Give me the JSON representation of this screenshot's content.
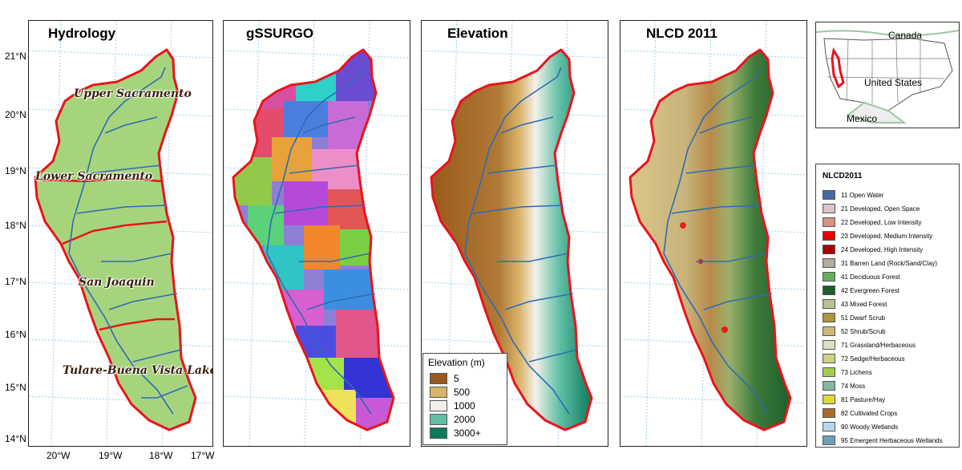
{
  "panels": [
    {
      "title": "Hydrology"
    },
    {
      "title": "gSSURGO"
    },
    {
      "title": "Elevation"
    },
    {
      "title": "NLCD 2011"
    }
  ],
  "axes": {
    "lat_ticks": [
      "21°N",
      "20°N",
      "19°N",
      "18°N",
      "17°N",
      "16°N",
      "15°N",
      "14°N"
    ],
    "lon_ticks": [
      "20°W",
      "19°W",
      "18°W",
      "17°W"
    ]
  },
  "subregions": [
    "Upper Sacramento",
    "Lower Sacramento",
    "San Joaquin",
    "Tulare-Buena Vista Lake"
  ],
  "elevation_legend": {
    "title": "Elevation (m)",
    "items": [
      {
        "label": "5",
        "color": "#9a5a1c"
      },
      {
        "label": "500",
        "color": "#d9b46a"
      },
      {
        "label": "1000",
        "color": "#f2f0ea"
      },
      {
        "label": "2000",
        "color": "#5fbfa5"
      },
      {
        "label": "3000+",
        "color": "#0f7a5c"
      }
    ]
  },
  "nlcd_legend": {
    "title": "NLCD2011",
    "items": [
      {
        "label": "11 Open Water",
        "color": "#466b9f"
      },
      {
        "label": "21 Developed, Open Space",
        "color": "#dec5c5"
      },
      {
        "label": "22 Developed, Low Intensity",
        "color": "#d99282"
      },
      {
        "label": "23 Developed, Medium Intensity",
        "color": "#eb0000"
      },
      {
        "label": "24 Developed, High Intensity",
        "color": "#ab0000"
      },
      {
        "label": "31 Barren Land (Rock/Sand/Clay)",
        "color": "#b3ac9f"
      },
      {
        "label": "41 Deciduous Forest",
        "color": "#68ab5f"
      },
      {
        "label": "42 Evergreen Forest",
        "color": "#1c5f2c"
      },
      {
        "label": "43 Mixed Forest",
        "color": "#b5c58f"
      },
      {
        "label": "51 Dwarf Scrub",
        "color": "#af963c"
      },
      {
        "label": "52 Shrub/Scrub",
        "color": "#ccb879"
      },
      {
        "label": "71 Grassland/Herbaceous",
        "color": "#dfdfc2"
      },
      {
        "label": "72 Sedge/Herbaceous",
        "color": "#d1d182"
      },
      {
        "label": "73 Lichens",
        "color": "#a3cc51"
      },
      {
        "label": "74 Moss",
        "color": "#82ba9e"
      },
      {
        "label": "81 Pasture/Hay",
        "color": "#dcd939"
      },
      {
        "label": "82 Cultivated Crops",
        "color": "#ab6c28"
      },
      {
        "label": "90 Woody Wetlands",
        "color": "#b8d9eb"
      },
      {
        "label": "95 Emergent Herbaceous Wetlands",
        "color": "#6c9fb8"
      }
    ]
  },
  "inset": {
    "labels": [
      "Canada",
      "United States",
      "Mexico"
    ]
  },
  "colors": {
    "boundary": "#e8141c",
    "river": "#2f6bb5",
    "hydro_fill": "#a6d47c",
    "graticule": "#8cc3e0"
  }
}
